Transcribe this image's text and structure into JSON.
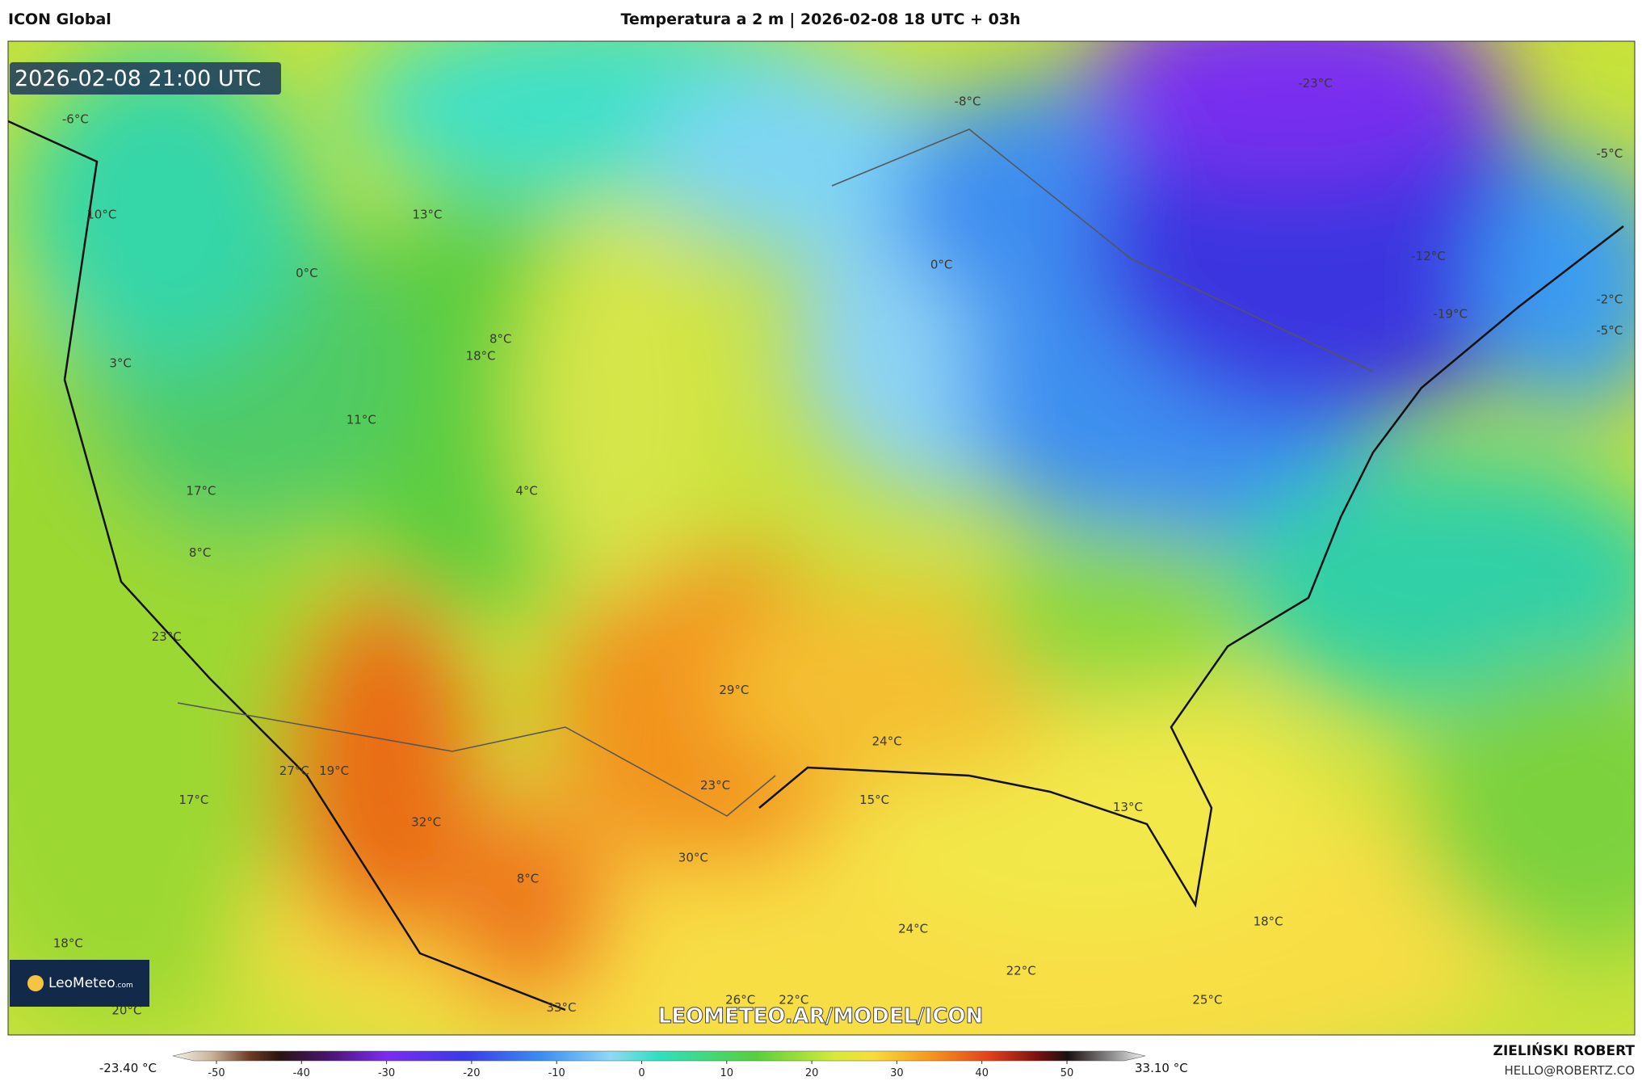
{
  "header": {
    "model": "ICON Global",
    "title": "Temperatura a 2 m | 2026-02-08 18 UTC + 03h"
  },
  "timestamp": "2026-02-08 21:00 UTC",
  "labels": [
    "-6°C",
    "10°C",
    "13°C",
    "0°C",
    "3°C",
    "8°C",
    "18°C",
    "11°C",
    "17°C",
    "4°C",
    "8°C",
    "23°C",
    "27°C",
    "19°C",
    "17°C",
    "32°C",
    "8°C",
    "30°C",
    "29°C",
    "23°C",
    "24°C",
    "15°C",
    "13°C",
    "24°C",
    "22°C",
    "18°C",
    "25°C",
    "26°C",
    "22°C",
    "33°C",
    "18°C",
    "20°C",
    "-8°C",
    "-23°C",
    "-5°C",
    "-12°C",
    "0°C",
    "-19°C",
    "-2°C",
    "-5°C"
  ],
  "watermark": "LEOMETEO.AR/MODEL/ICON",
  "logo": {
    "name": "LeoMeteo",
    "suffix": ".com"
  },
  "colorbar": {
    "min_label": "-23.40 °C",
    "max_label": "33.10 °C",
    "ticks": [
      -50,
      -40,
      -30,
      -20,
      -10,
      0,
      10,
      20,
      30,
      40,
      50
    ]
  },
  "credit": {
    "author": "ZIELIŃSKI ROBERT",
    "contact": "HELLO@ROBERTZ.CO"
  }
}
